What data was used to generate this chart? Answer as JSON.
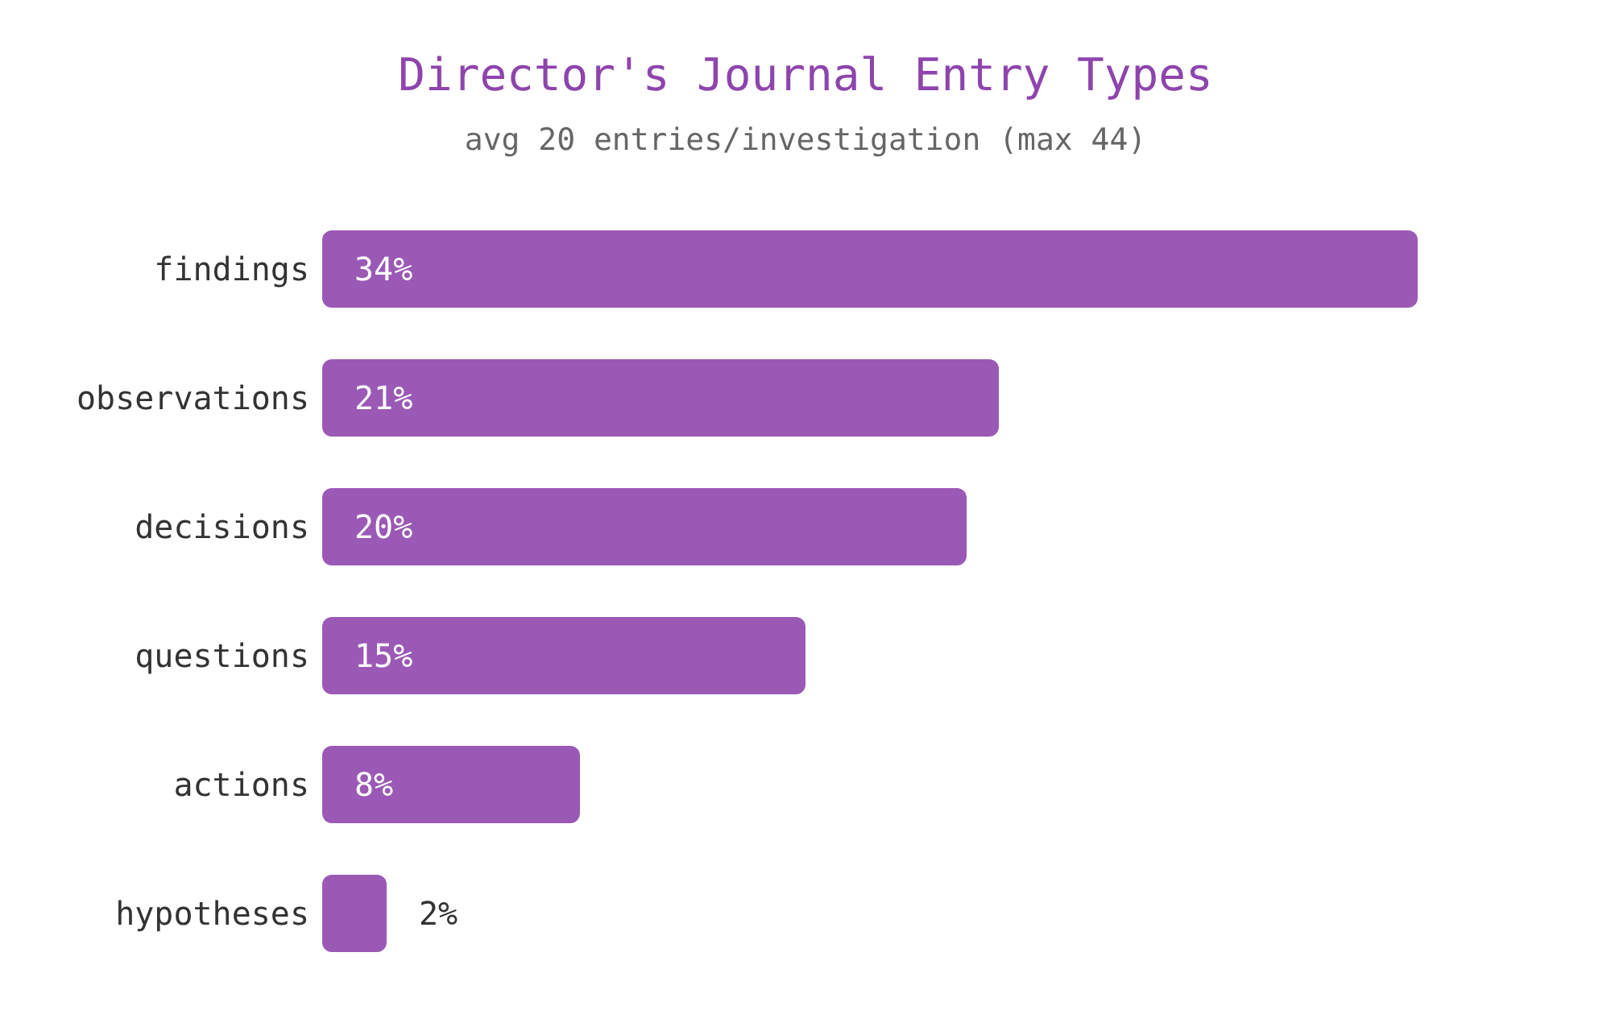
{
  "chart_data": {
    "type": "bar",
    "orientation": "horizontal",
    "title": "Director's Journal Entry Types",
    "subtitle": "avg 20 entries/investigation (max 44)",
    "categories": [
      "findings",
      "observations",
      "decisions",
      "questions",
      "actions",
      "hypotheses"
    ],
    "values": [
      34,
      21,
      20,
      15,
      8,
      2
    ],
    "value_labels": [
      "34%",
      "21%",
      "20%",
      "15%",
      "8%",
      "2%"
    ],
    "color": "#9b59b6",
    "grid": false,
    "legend": false
  }
}
